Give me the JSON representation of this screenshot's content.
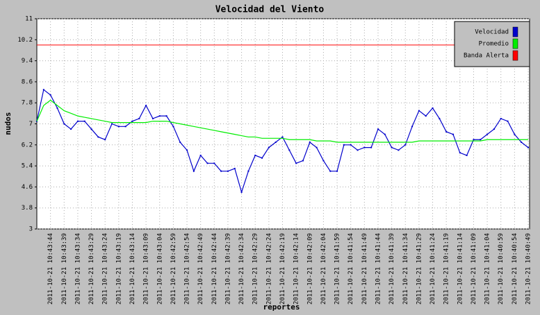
{
  "chart_data": {
    "type": "line",
    "title": "Velocidad del Viento",
    "x_label": "reportes",
    "y_label": "nudos",
    "categories": [
      null,
      null,
      "2011-10-21 10:43:44",
      null,
      "2011-10-21 10:43:39",
      null,
      "2011-10-21 10:43:34",
      null,
      "2011-10-21 10:43:29",
      null,
      "2011-10-21 10:43:24",
      null,
      "2011-10-21 10:43:19",
      null,
      "2011-10-21 10:43:14",
      null,
      "2011-10-21 10:43:09",
      null,
      "2011-10-21 10:43:04",
      null,
      "2011-10-21 10:42:59",
      null,
      "2011-10-21 10:42:54",
      null,
      "2011-10-21 10:42:49",
      null,
      "2011-10-21 10:42:44",
      null,
      "2011-10-21 10:42:39",
      null,
      "2011-10-21 10:42:34",
      null,
      "2011-10-21 10:42:29",
      null,
      "2011-10-21 10:42:24",
      null,
      "2011-10-21 10:42:19",
      null,
      "2011-10-21 10:42:14",
      null,
      "2011-10-21 10:42:09",
      null,
      "2011-10-21 10:42:04",
      null,
      "2011-10-21 10:41:59",
      null,
      "2011-10-21 10:41:54",
      null,
      "2011-10-21 10:41:49",
      null,
      "2011-10-21 10:41:44",
      null,
      "2011-10-21 10:41:39",
      null,
      "2011-10-21 10:41:34",
      null,
      "2011-10-21 10:41:29",
      null,
      "2011-10-21 10:41:24",
      null,
      "2011-10-21 10:41:19",
      null,
      "2011-10-21 10:41:14",
      null,
      "2011-10-21 10:41:09",
      null,
      "2011-10-21 10:41:04",
      null,
      "2011-10-21 10:40:59",
      null,
      "2011-10-21 10:40:54",
      null,
      "2011-10-21 10:40:49"
    ],
    "series": [
      {
        "name": "Velocidad",
        "color": "#0000cc",
        "markers": true,
        "values": [
          7.1,
          8.3,
          8.1,
          7.6,
          7.0,
          6.8,
          7.1,
          7.1,
          6.8,
          6.5,
          6.4,
          7.0,
          6.9,
          6.9,
          7.1,
          7.2,
          7.7,
          7.2,
          7.3,
          7.3,
          6.9,
          6.3,
          6.0,
          5.2,
          5.8,
          5.5,
          5.5,
          5.2,
          5.2,
          5.3,
          4.4,
          5.2,
          5.8,
          5.7,
          6.1,
          6.3,
          6.5,
          6.0,
          5.5,
          5.6,
          6.3,
          6.1,
          5.6,
          5.2,
          5.2,
          6.2,
          6.2,
          6.0,
          6.1,
          6.1,
          6.8,
          6.6,
          6.1,
          6.0,
          6.2,
          6.9,
          7.5,
          7.3,
          7.6,
          7.2,
          6.7,
          6.6,
          5.9,
          5.8,
          6.4,
          6.4,
          6.6,
          6.8,
          7.2,
          7.1,
          6.6,
          6.3,
          6.1
        ]
      },
      {
        "name": "Promedio",
        "color": "#00ee00",
        "markers": false,
        "values": [
          7.1,
          7.7,
          7.9,
          7.7,
          7.5,
          7.4,
          7.3,
          7.25,
          7.2,
          7.15,
          7.1,
          7.05,
          7.05,
          7.05,
          7.05,
          7.05,
          7.05,
          7.1,
          7.1,
          7.1,
          7.05,
          7.0,
          6.95,
          6.9,
          6.85,
          6.8,
          6.75,
          6.7,
          6.65,
          6.6,
          6.55,
          6.5,
          6.5,
          6.45,
          6.45,
          6.45,
          6.45,
          6.4,
          6.4,
          6.4,
          6.4,
          6.35,
          6.35,
          6.35,
          6.3,
          6.3,
          6.3,
          6.3,
          6.3,
          6.3,
          6.3,
          6.3,
          6.3,
          6.3,
          6.3,
          6.3,
          6.35,
          6.35,
          6.35,
          6.35,
          6.35,
          6.35,
          6.35,
          6.35,
          6.35,
          6.35,
          6.4,
          6.4,
          6.4,
          6.4,
          6.4,
          6.4,
          6.4
        ]
      }
    ],
    "threshold": {
      "name": "Banda Alerta",
      "color": "#ff0000",
      "value": 10
    },
    "ylim": [
      3,
      11
    ],
    "yticks": [
      3,
      3.8,
      4.6,
      5.4,
      6.2,
      7,
      7.8,
      8.6,
      9.4,
      10.2,
      11
    ],
    "grid": true,
    "legend": "top-right"
  }
}
